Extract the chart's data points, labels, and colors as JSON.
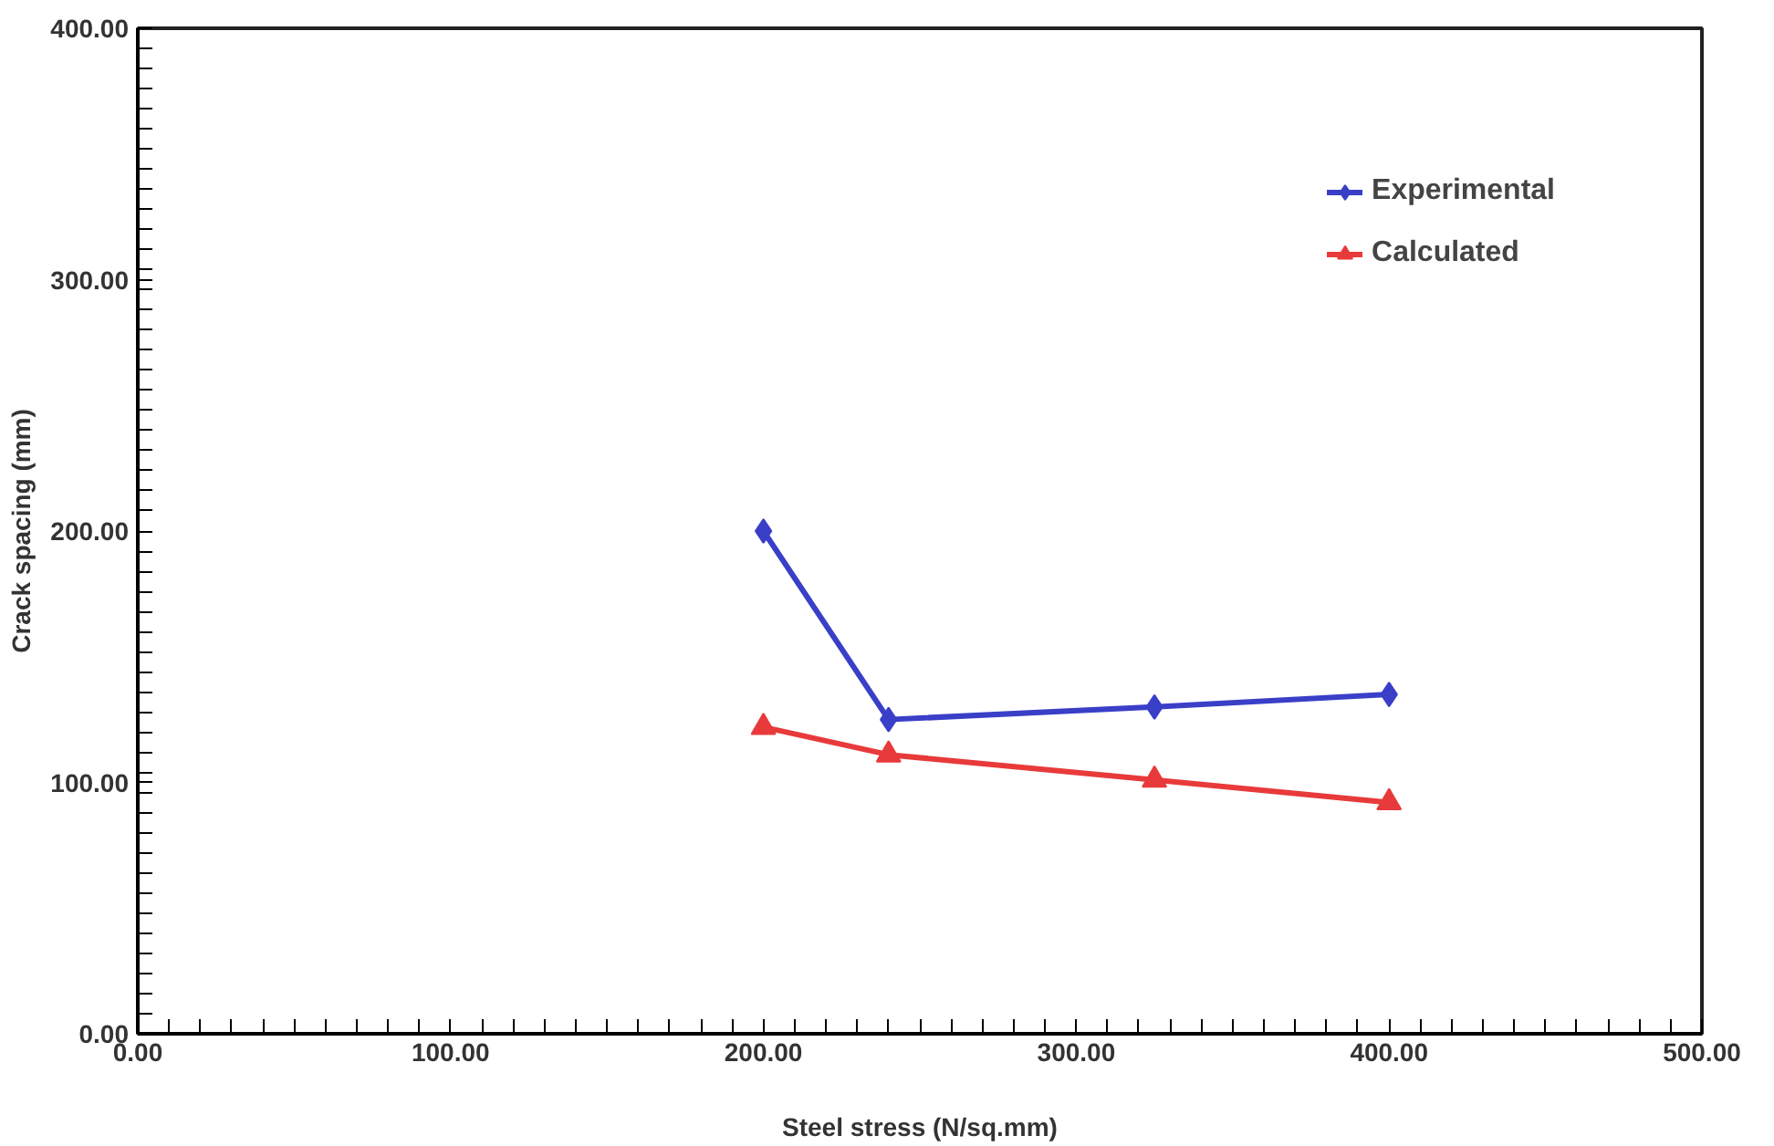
{
  "chart_data": {
    "type": "line",
    "xlabel": "Steel stress (N/sq.mm)",
    "ylabel": "Crack spacing (mm)",
    "xlim": [
      0,
      500
    ],
    "ylim": [
      0,
      400
    ],
    "xticks": [
      {
        "value": 0,
        "label": "0.00"
      },
      {
        "value": 100,
        "label": "100.00"
      },
      {
        "value": 200,
        "label": "200.00"
      },
      {
        "value": 300,
        "label": "300.00"
      },
      {
        "value": 400,
        "label": "400.00"
      },
      {
        "value": 500,
        "label": "500.00"
      }
    ],
    "yticks": [
      {
        "value": 0,
        "label": "0.00"
      },
      {
        "value": 100,
        "label": "100.00"
      },
      {
        "value": 200,
        "label": "200.00"
      },
      {
        "value": 300,
        "label": "300.00"
      },
      {
        "value": 400,
        "label": "400.00"
      }
    ],
    "x": [
      200,
      240,
      325,
      400
    ],
    "series": [
      {
        "name": "Experimental",
        "color": "#3a3fc8",
        "values": [
          200,
          125,
          130,
          135
        ],
        "marker": "diamond"
      },
      {
        "name": "Calculated",
        "color": "#e83a3a",
        "values": [
          122,
          111,
          101,
          92
        ],
        "marker": "triangle"
      }
    ],
    "grid": false,
    "legend": "top right",
    "line_style": "solid"
  }
}
